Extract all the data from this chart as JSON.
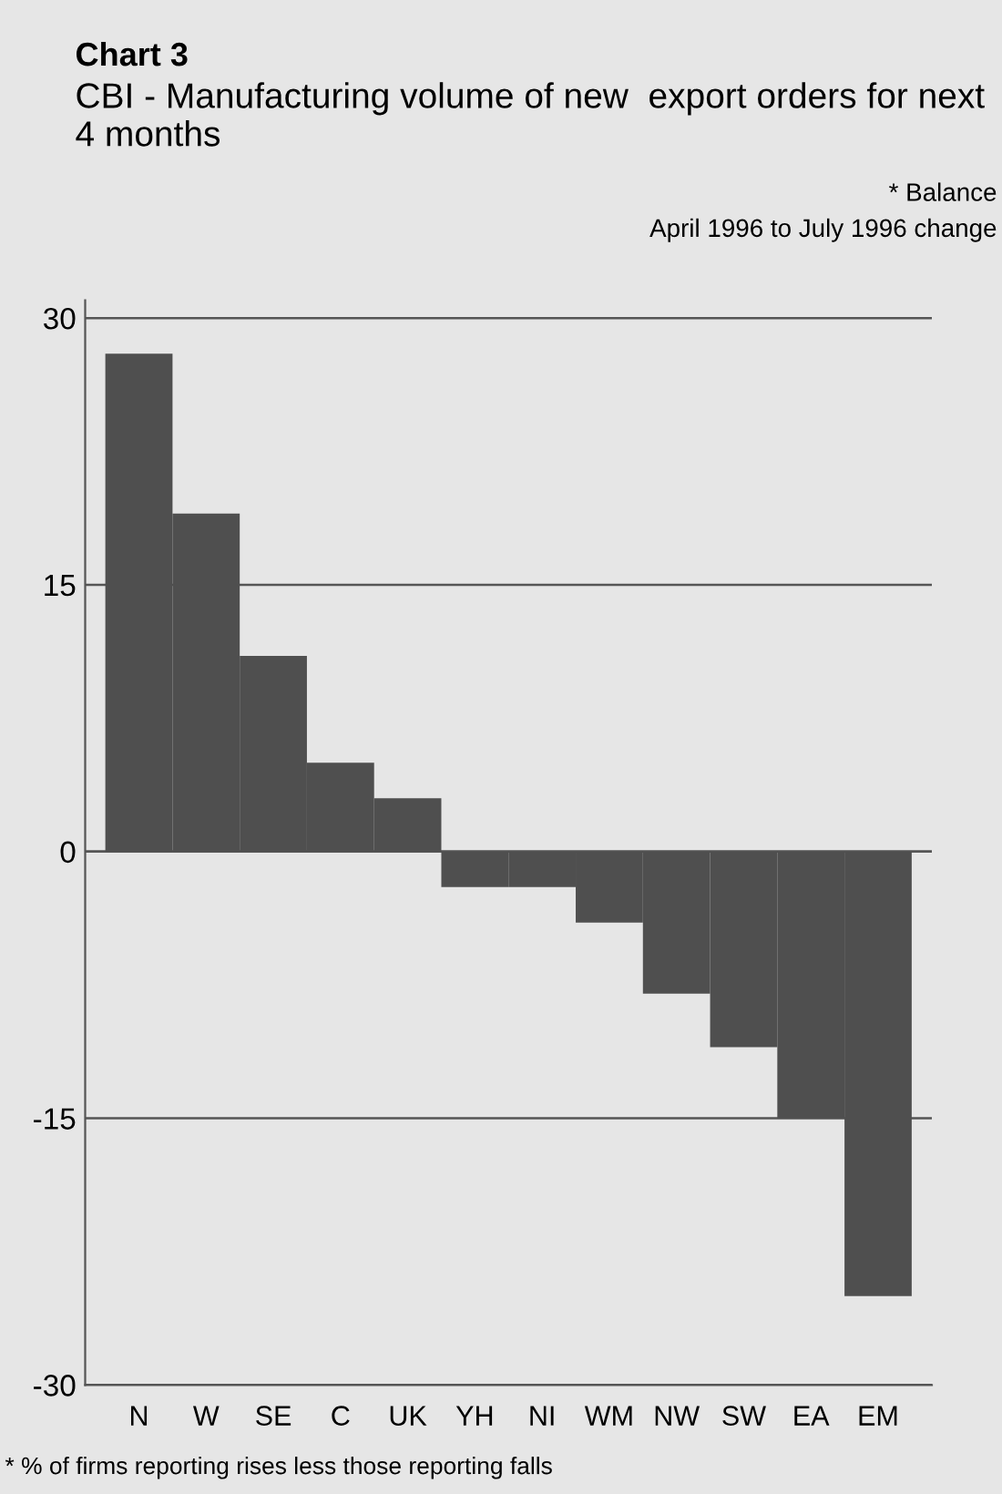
{
  "chart_data": {
    "type": "bar",
    "title": "Chart 3",
    "subtitle": "CBI - Manufacturing volume of new  export orders for next 4 months",
    "annotations": [
      "* Balance",
      "April 1996 to July 1996 change",
      "* % of firms reporting rises less those reporting falls"
    ],
    "categories": [
      "N",
      "W",
      "SE",
      "C",
      "UK",
      "YH",
      "NI",
      "WM",
      "NW",
      "SW",
      "EA",
      "EM"
    ],
    "values": [
      28,
      19,
      11,
      5,
      3,
      -2,
      -2,
      -4,
      -8,
      -11,
      -15,
      -25
    ],
    "color": "#4f4f4f",
    "ylim": [
      -30,
      31
    ],
    "yticks": [
      -30,
      -15,
      0,
      15,
      30
    ],
    "grid": "y",
    "legend": false
  }
}
